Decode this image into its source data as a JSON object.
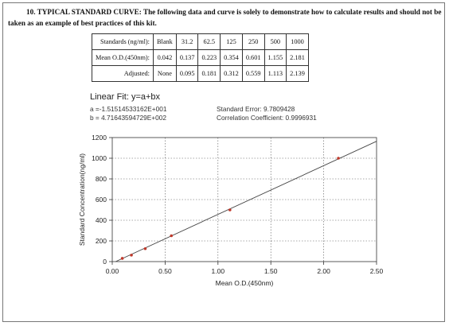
{
  "heading": "10. TYPICAL STANDARD CURVE: The following data and curve is solely to demonstrate how to calculate results and should not be taken as an example of best practices of this kit.",
  "table": {
    "rows": [
      {
        "label": "Standards (ng/ml):",
        "cells": [
          "Blank",
          "31.2",
          "62.5",
          "125",
          "250",
          "500",
          "1000"
        ]
      },
      {
        "label": "Mean O.D.(450nm):",
        "cells": [
          "0.042",
          "0.137",
          "0.223",
          "0.354",
          "0.601",
          "1.155",
          "2.181"
        ]
      },
      {
        "label": "Adjusted:",
        "cells": [
          "None",
          "0.095",
          "0.181",
          "0.312",
          "0.559",
          "1.113",
          "2.139"
        ]
      }
    ]
  },
  "fit": {
    "title": "Linear Fit: y=a+bx",
    "a": "a =-1.51514533162E+001",
    "b": "b = 4.71643594729E+002",
    "std_error": "Standard Error: 9.7809428",
    "corr": "Correlation Coefficient: 0.9996931"
  },
  "chart_data": {
    "type": "scatter",
    "xlabel": "Mean O.D.(450nm)",
    "ylabel": "Standard Concentration(ng/ml)",
    "xlim": [
      0,
      2.5
    ],
    "ylim": [
      0,
      1200
    ],
    "xticks": [
      "0.00",
      "0.50",
      "1.00",
      "1.50",
      "2.00",
      "2.50"
    ],
    "yticks": [
      "0",
      "200",
      "400",
      "600",
      "800",
      "1000",
      "1200"
    ],
    "grid": true,
    "points": [
      {
        "x": 0.095,
        "y": 31.2
      },
      {
        "x": 0.181,
        "y": 62.5
      },
      {
        "x": 0.312,
        "y": 125
      },
      {
        "x": 0.559,
        "y": 250
      },
      {
        "x": 1.113,
        "y": 500
      },
      {
        "x": 2.139,
        "y": 1000
      }
    ],
    "fit_line": {
      "a": -15.1514533162,
      "b": 471.643594729
    },
    "point_color": "#c0392b",
    "line_color": "#444444"
  }
}
